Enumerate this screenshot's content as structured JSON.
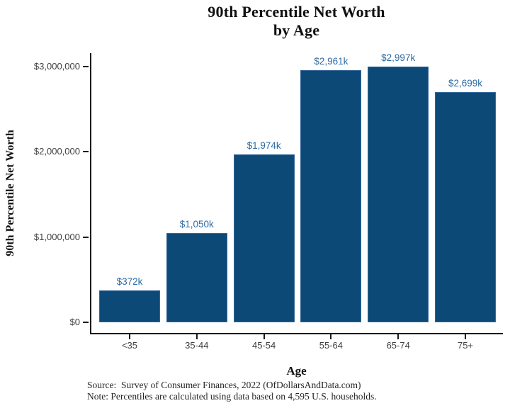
{
  "title": {
    "line1": "90th Percentile Net Worth",
    "line2": "by Age"
  },
  "caption": {
    "source": "Source:  Survey of Consumer Finances, 2022 (OfDollarsAndData.com)",
    "note": "Note: Percentiles are calculated using data based on 4,595 U.S. households."
  },
  "colors": {
    "bar_fill": "#0d4977",
    "bar_edge": "#34689a",
    "bar_label_text": "#2e6ba3",
    "axis_line": "#1a1a1a",
    "tick_text": "#404040",
    "title_text": "#111111",
    "caption_text": "#262626"
  },
  "chart_data": {
    "type": "bar",
    "title": "90th Percentile Net Worth by Age",
    "xlabel": "Age",
    "ylabel": "90th Percentile Net Worth",
    "categories": [
      "<35",
      "35-44",
      "45-54",
      "55-64",
      "65-74",
      "75+"
    ],
    "values": [
      372000,
      1050000,
      1974000,
      2961000,
      2997000,
      2699000
    ],
    "bar_labels": [
      "$372k",
      "$1,050k",
      "$1,974k",
      "$2,961k",
      "$2,997k",
      "$2,699k"
    ],
    "y_ticks": [
      {
        "value": 0,
        "label": "$0"
      },
      {
        "value": 1000000,
        "label": "$1,000,000"
      },
      {
        "value": 2000000,
        "label": "$2,000,000"
      },
      {
        "value": 3000000,
        "label": "$3,000,000"
      }
    ],
    "ylim": [
      0,
      3000000
    ],
    "grid": false,
    "legend": "none"
  }
}
